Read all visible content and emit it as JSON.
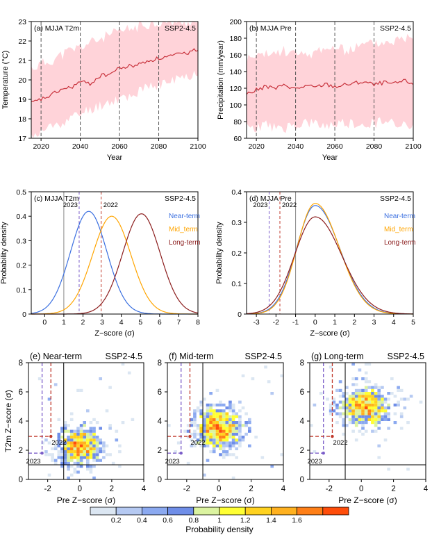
{
  "colors": {
    "band": "#ffd3d9",
    "mean_line": "#c8323c",
    "near": "#3a6fe0",
    "mid": "#ffa500",
    "long": "#8b1c1c",
    "line_2023": "#7a5cc8",
    "line_2022": "#c0392b"
  },
  "chart_data": [
    {
      "panel": "a",
      "type": "line",
      "title": "(a) MJJA T2m",
      "scenario": "SSP2-4.5",
      "xlabel": "Year",
      "ylabel": "Temperature (°C)",
      "xlim": [
        2015,
        2100
      ],
      "ylim": [
        17,
        23
      ],
      "xticks": [
        2020,
        2040,
        2060,
        2080,
        2100
      ],
      "yticks": [
        17,
        18,
        19,
        20,
        21,
        22,
        23
      ],
      "vlines": [
        2020,
        2040,
        2060,
        2080
      ],
      "band_x": [
        2015,
        2025,
        2035,
        2045,
        2055,
        2065,
        2075,
        2085,
        2095,
        2100
      ],
      "band_low": [
        17.0,
        17.6,
        18.0,
        18.5,
        18.9,
        19.2,
        19.6,
        19.9,
        20.2,
        20.4
      ],
      "band_high": [
        20.6,
        21.0,
        21.5,
        21.9,
        22.3,
        22.6,
        22.9,
        23.0,
        23.0,
        23.0
      ],
      "mean_x": [
        2015,
        2020,
        2025,
        2030,
        2035,
        2040,
        2045,
        2050,
        2055,
        2060,
        2065,
        2070,
        2075,
        2080,
        2085,
        2090,
        2095,
        2100
      ],
      "mean_y": [
        18.8,
        19.0,
        19.2,
        19.5,
        19.6,
        19.9,
        19.8,
        20.2,
        20.3,
        20.6,
        20.7,
        20.8,
        21.0,
        21.1,
        21.2,
        21.3,
        21.4,
        21.6
      ]
    },
    {
      "panel": "b",
      "type": "line",
      "title": "(b) MJJA Pre",
      "scenario": "SSP2-4.5",
      "xlabel": "Year",
      "ylabel": "Precipitation (mm/year)",
      "xlim": [
        2015,
        2100
      ],
      "ylim": [
        60,
        200
      ],
      "xticks": [
        2020,
        2040,
        2060,
        2080,
        2100
      ],
      "yticks": [
        60,
        80,
        100,
        120,
        140,
        160,
        180,
        200
      ],
      "vlines": [
        2020,
        2040,
        2060,
        2080
      ],
      "band_x": [
        2015,
        2025,
        2035,
        2045,
        2055,
        2065,
        2075,
        2085,
        2095,
        2100
      ],
      "band_low": [
        72,
        75,
        72,
        78,
        74,
        78,
        76,
        80,
        77,
        78
      ],
      "band_high": [
        155,
        160,
        165,
        158,
        170,
        165,
        172,
        175,
        180,
        185
      ],
      "mean_x": [
        2015,
        2020,
        2025,
        2030,
        2035,
        2040,
        2045,
        2050,
        2055,
        2060,
        2065,
        2070,
        2075,
        2080,
        2085,
        2090,
        2095,
        2100
      ],
      "mean_y": [
        113,
        118,
        122,
        120,
        124,
        119,
        123,
        121,
        125,
        122,
        124,
        126,
        128,
        124,
        127,
        125,
        129,
        126
      ]
    },
    {
      "panel": "c",
      "type": "line",
      "title": "(c) MJJA T2m",
      "scenario": "SSP2-4.5",
      "xlabel": "Z−score (σ)",
      "ylabel": "Probability density",
      "xlim": [
        -0.7,
        8
      ],
      "ylim": [
        0,
        0.5
      ],
      "xticks": [
        0,
        1,
        2,
        3,
        4,
        5,
        6,
        7,
        8
      ],
      "yticks": [
        0,
        0.1,
        0.2,
        0.3,
        0.4,
        0.5
      ],
      "gray_line": 1,
      "year_lines": [
        {
          "label": "2023",
          "x": 1.8
        },
        {
          "label": "2022",
          "x": 2.95
        }
      ],
      "series": [
        {
          "name": "Near-term",
          "mean": 2.3,
          "sd": 0.95,
          "peak": 0.42
        },
        {
          "name": "Mid_term",
          "mean": 3.5,
          "sd": 1.0,
          "peak": 0.4
        },
        {
          "name": "Long-term",
          "mean": 5.05,
          "sd": 0.98,
          "peak": 0.41
        }
      ]
    },
    {
      "panel": "d",
      "type": "line",
      "title": "(d) MJJA Pre",
      "scenario": "SSP2-4.5",
      "xlabel": "Z−score (σ)",
      "ylabel": "Probability density",
      "xlim": [
        -3.5,
        5
      ],
      "ylim": [
        0,
        0.4
      ],
      "xticks": [
        -3,
        -2,
        -1,
        0,
        1,
        2,
        3,
        4,
        5
      ],
      "yticks": [
        0,
        0.1,
        0.2,
        0.3,
        0.4
      ],
      "gray_line": -1,
      "year_lines": [
        {
          "label": "2023",
          "x": -2.35
        },
        {
          "label": "2022",
          "x": -1.8
        }
      ],
      "series": [
        {
          "name": "Near-term",
          "mean": 0,
          "sd_left": 0.95,
          "sd_right": 1.25,
          "peak": 0.355
        },
        {
          "name": "Mid_term",
          "mean": 0,
          "sd_left": 0.92,
          "sd_right": 1.22,
          "peak": 0.362
        },
        {
          "name": "Long-term",
          "mean": 0,
          "sd_left": 1.05,
          "sd_right": 1.35,
          "peak": 0.318
        }
      ]
    },
    {
      "panel": "e",
      "type": "heatmap",
      "title": "(e)  Near-term",
      "scenario": "SSP2-4.5",
      "xlabel": "Pre Z−score (σ)",
      "ylabel": "T2m Z−score (σ)",
      "xlim": [
        -3.2,
        4
      ],
      "ylim": [
        0,
        8
      ],
      "xticks": [
        -2,
        0,
        2,
        4
      ],
      "yticks": [
        0,
        2,
        4,
        6,
        8
      ],
      "center": [
        0,
        2.3
      ],
      "spread": [
        0.95,
        0.95
      ]
    },
    {
      "panel": "f",
      "type": "heatmap",
      "title": "(f)  Mid-term",
      "scenario": "SSP2-4.5",
      "xlabel": "Pre Z−score (σ)",
      "ylabel": "",
      "xlim": [
        -3.2,
        4
      ],
      "ylim": [
        0,
        8
      ],
      "xticks": [
        -2,
        0,
        2,
        4
      ],
      "yticks": [
        0,
        2,
        4,
        6,
        8
      ],
      "center": [
        0,
        3.5
      ],
      "spread": [
        1.0,
        1.0
      ]
    },
    {
      "panel": "g",
      "type": "heatmap",
      "title": "(g)  Long-term",
      "scenario": "SSP2-4.5",
      "xlabel": "Pre Z−score (σ)",
      "ylabel": "",
      "xlim": [
        -3.2,
        4
      ],
      "ylim": [
        0,
        8
      ],
      "xticks": [
        -2,
        0,
        2,
        4
      ],
      "yticks": [
        0,
        2,
        4,
        6,
        8
      ],
      "center": [
        0.2,
        5.0
      ],
      "spread": [
        1.05,
        0.95
      ]
    }
  ],
  "scatter_markers": {
    "y2023": {
      "label": "2023",
      "x": -2.35,
      "y": 1.8
    },
    "y2022": {
      "label": "2022",
      "x": -1.8,
      "y": 2.95
    },
    "hline": 1,
    "vline": -1
  },
  "colorbar": {
    "label": "Probability density",
    "ticks": [
      "0.2",
      "0.4",
      "0.6",
      "0.8",
      "1",
      "1.2",
      "1.4",
      "1.6"
    ],
    "colors": [
      "#dbe6f2",
      "#b5c9f2",
      "#8ba9f0",
      "#6f8ee8",
      "#dbf3a0",
      "#ffff33",
      "#ffd21f",
      "#ffb11f",
      "#ff7f17",
      "#ff4d0a"
    ]
  }
}
